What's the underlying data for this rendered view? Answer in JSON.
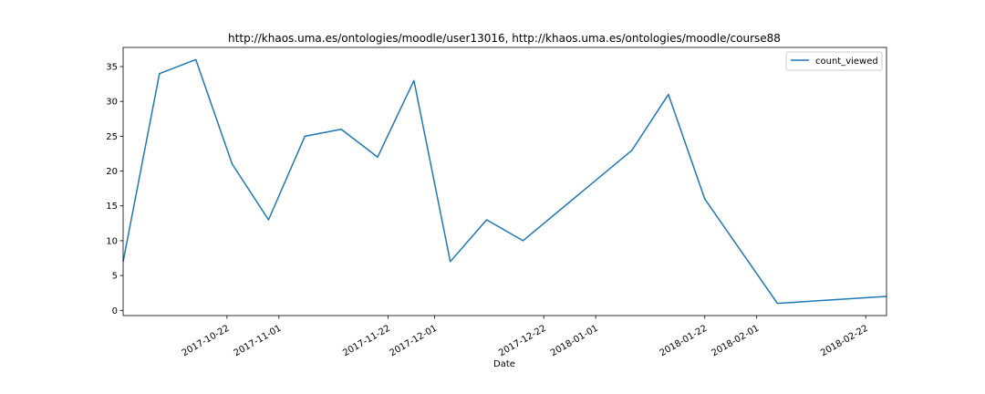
{
  "chart_data": {
    "type": "line",
    "title": "http://khaos.uma.es/ontologies/moodle/user13016, http://khaos.uma.es/ontologies/moodle/course88",
    "xlabel": "Date",
    "ylabel": "",
    "x_type": "date",
    "xlim": [
      "2017-10-02",
      "2018-02-26"
    ],
    "ylim": [
      -0.75,
      37.75
    ],
    "yticks": [
      0,
      5,
      10,
      15,
      20,
      25,
      30,
      35
    ],
    "xticks": [
      "2017-10-22",
      "2017-11-01",
      "2017-11-22",
      "2017-12-01",
      "2017-12-22",
      "2018-01-01",
      "2018-01-22",
      "2018-02-01",
      "2018-02-22"
    ],
    "grid": false,
    "legend": {
      "position": "top-right",
      "entries": [
        "count_viewed"
      ]
    },
    "series": [
      {
        "name": "count_viewed",
        "color": "#1f77b4",
        "x": [
          "2017-10-02",
          "2017-10-09",
          "2017-10-16",
          "2017-10-23",
          "2017-10-30",
          "2017-11-06",
          "2017-11-13",
          "2017-11-20",
          "2017-11-27",
          "2017-12-04",
          "2017-12-11",
          "2017-12-18",
          "2018-01-08",
          "2018-01-15",
          "2018-01-22",
          "2018-02-05",
          "2018-02-26"
        ],
        "values": [
          7,
          34,
          36,
          21,
          13,
          25,
          26,
          22,
          33,
          7,
          13,
          10,
          23,
          31,
          16,
          1,
          2
        ]
      }
    ]
  }
}
